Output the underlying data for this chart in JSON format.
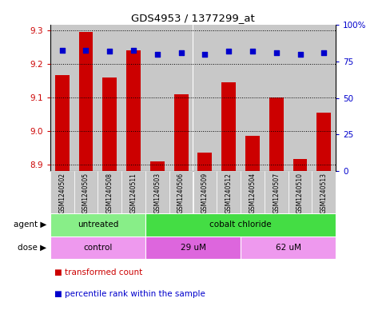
{
  "title": "GDS4953 / 1377299_at",
  "samples": [
    "GSM1240502",
    "GSM1240505",
    "GSM1240508",
    "GSM1240511",
    "GSM1240503",
    "GSM1240506",
    "GSM1240509",
    "GSM1240512",
    "GSM1240504",
    "GSM1240507",
    "GSM1240510",
    "GSM1240513"
  ],
  "bar_values": [
    9.165,
    9.295,
    9.16,
    9.24,
    8.91,
    9.11,
    8.935,
    9.145,
    8.985,
    9.1,
    8.915,
    9.055
  ],
  "percentile_values": [
    83,
    83,
    82,
    83,
    80,
    81,
    80,
    82,
    82,
    81,
    80,
    81
  ],
  "ylim_left": [
    8.88,
    9.315
  ],
  "ylim_right": [
    0,
    100
  ],
  "yticks_left": [
    8.9,
    9.0,
    9.1,
    9.2,
    9.3
  ],
  "yticks_right": [
    0,
    25,
    50,
    75,
    100
  ],
  "bar_color": "#cc0000",
  "dot_color": "#0000cc",
  "bar_width": 0.6,
  "agent_groups": [
    {
      "label": "untreated",
      "start": 0,
      "end": 4,
      "color": "#88ee88"
    },
    {
      "label": "cobalt chloride",
      "start": 4,
      "end": 12,
      "color": "#44dd44"
    }
  ],
  "dose_groups": [
    {
      "label": "control",
      "start": 0,
      "end": 4,
      "color": "#ee99ee"
    },
    {
      "label": "29 uM",
      "start": 4,
      "end": 8,
      "color": "#dd66dd"
    },
    {
      "label": "62 uM",
      "start": 8,
      "end": 12,
      "color": "#ee99ee"
    }
  ],
  "legend_bar_label": "transformed count",
  "legend_dot_label": "percentile rank within the sample",
  "agent_label": "agent",
  "dose_label": "dose",
  "left_tick_color": "#cc0000",
  "right_tick_color": "#0000cc",
  "sample_bg_color": "#c8c8c8",
  "plot_bg_color": "#ffffff"
}
